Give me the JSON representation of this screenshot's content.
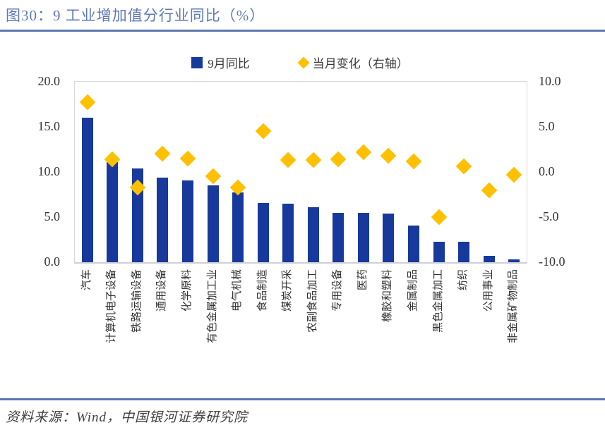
{
  "title": "图30：9 工业增加值分行业同比（%）",
  "legend": {
    "bar_label": "9月同比",
    "diamond_label": "当月变化（右轴）"
  },
  "footer": {
    "source": "资料来源：Wind，中国银河证券研究院"
  },
  "colors": {
    "bar": "#17399c",
    "diamond": "#ffc000",
    "title_text": "#5e79b7",
    "rule": "#5b76b0",
    "axis_text": "#333333",
    "plot_border": "#d9d9d9"
  },
  "chart_data": {
    "type": "bar",
    "title": "图30：9 工业增加值分行业同比（%）",
    "categories": [
      "汽车",
      "计算机电子设备",
      "铁路运输设备",
      "通用设备",
      "化学原料",
      "有色金属加工业",
      "电气机械",
      "食品制造",
      "煤炭开采",
      "农副食品加工",
      "专用设备",
      "医药",
      "橡胶和塑料",
      "金属制品",
      "黑色金属加工",
      "纺织",
      "公用事业",
      "非金属矿物制品"
    ],
    "series": [
      {
        "name": "9月同比",
        "type": "bar",
        "axis": "left",
        "values": [
          16.0,
          11.1,
          10.4,
          9.4,
          9.1,
          8.5,
          7.7,
          6.6,
          6.5,
          6.1,
          5.5,
          5.5,
          5.4,
          4.1,
          2.3,
          2.3,
          0.7,
          0.3
        ]
      },
      {
        "name": "当月变化（右轴）",
        "type": "scatter-diamond",
        "axis": "right",
        "values": [
          7.7,
          1.4,
          -1.7,
          2.0,
          1.5,
          -0.5,
          -1.7,
          4.5,
          1.3,
          1.3,
          1.4,
          2.2,
          1.8,
          1.2,
          -5.0,
          0.6,
          -2.0,
          -0.3
        ]
      }
    ],
    "left_axis": {
      "min": 0,
      "max": 20,
      "tick_labels": [
        "20.0",
        "15.0",
        "10.0",
        "5.0",
        "0.0"
      ],
      "tick_values": [
        20,
        15,
        10,
        5,
        0
      ]
    },
    "right_axis": {
      "min": -10,
      "max": 10,
      "tick_labels": [
        "10.0",
        "5.0",
        "0.0",
        "-5.0",
        "-10.0"
      ],
      "tick_values": [
        10,
        5,
        0,
        -5,
        -10
      ]
    },
    "grid": false,
    "legend_position": "top",
    "xlabel": "",
    "ylabel": ""
  }
}
